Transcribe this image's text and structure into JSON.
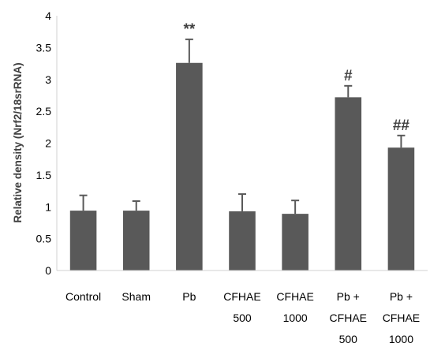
{
  "chart_data": {
    "type": "bar",
    "title": "",
    "xlabel": "",
    "ylabel": "Relative density (Nrf2/18srRNA)",
    "ylim": [
      0,
      4
    ],
    "yticks": [
      "0",
      "0.5",
      "1",
      "1.5",
      "2",
      "2.5",
      "3",
      "3.5",
      "4"
    ],
    "grid": false,
    "bar_color": "#595959",
    "categories": [
      [
        "Control"
      ],
      [
        "Sham"
      ],
      [
        "Pb"
      ],
      [
        "CFHAE",
        "500"
      ],
      [
        "CFHAE",
        "1000"
      ],
      [
        "Pb +",
        "CFHAE",
        "500"
      ],
      [
        "Pb +",
        "CFHAE",
        "1000"
      ]
    ],
    "values": [
      0.94,
      0.94,
      3.26,
      0.93,
      0.89,
      2.72,
      1.93
    ],
    "error_bars": [
      0.24,
      0.15,
      0.37,
      0.27,
      0.21,
      0.18,
      0.19
    ],
    "annotations": [
      "",
      "",
      "**",
      "",
      "",
      "#",
      "##"
    ]
  }
}
